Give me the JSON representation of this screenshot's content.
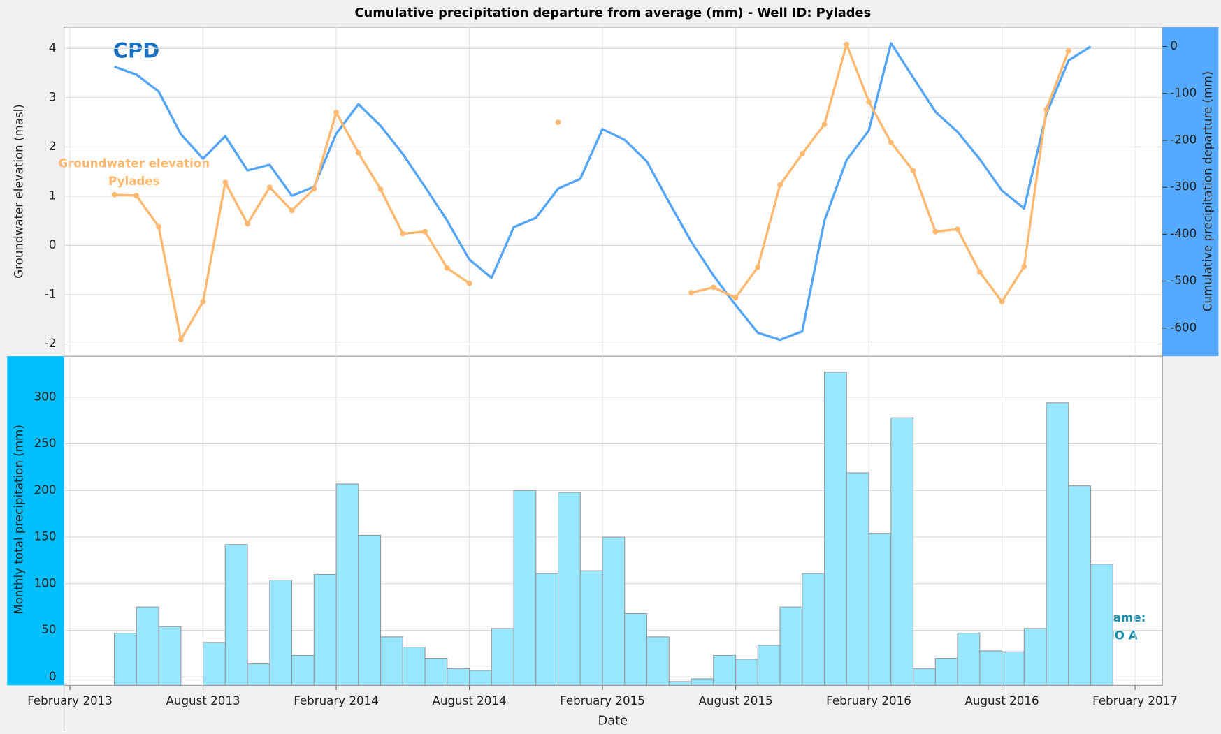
{
  "chart_data": [
    {
      "type": "line",
      "title": "Cumulative precipitation departure from average (mm) - Well ID: Pylades",
      "ylabel": "Groundwater elevation (masl)",
      "y2label": "Cumulative precipitation departure (mm)",
      "x": [
        "2013-04",
        "2013-05",
        "2013-06",
        "2013-07",
        "2013-08",
        "2013-09",
        "2013-10",
        "2013-11",
        "2013-12",
        "2014-01",
        "2014-02",
        "2014-03",
        "2014-04",
        "2014-05",
        "2014-06",
        "2014-07",
        "2014-08",
        "2014-09",
        "2014-10",
        "2014-11",
        "2014-12",
        "2015-01",
        "2015-02",
        "2015-03",
        "2015-04",
        "2015-05",
        "2015-06",
        "2015-07",
        "2015-08",
        "2015-09",
        "2015-10",
        "2015-11",
        "2015-12",
        "2016-01",
        "2016-02",
        "2016-03",
        "2016-04",
        "2016-05",
        "2016-06",
        "2016-07",
        "2016-08",
        "2016-09",
        "2016-10",
        "2016-11",
        "2016-12"
      ],
      "xlim": [
        "2013-01-23",
        "2017-03-08"
      ],
      "ylim": [
        -2.25,
        4.43
      ],
      "yticks": [
        -2,
        -1,
        0,
        1,
        2,
        3,
        4
      ],
      "y2lim": [
        -660,
        41
      ],
      "y2ticks": [
        -600,
        -500,
        -400,
        -300,
        -200,
        -100,
        0
      ],
      "grid": true,
      "series": [
        {
          "name": "CPD",
          "color": "#55a5f5",
          "axis": "y2",
          "values": [
            -43,
            -60,
            -96,
            -187,
            -239,
            -191,
            -264,
            -252,
            -318,
            -299,
            -186,
            -123,
            -169,
            -229,
            -299,
            -371,
            -454,
            -493,
            -385,
            -365,
            -303,
            -282,
            -176,
            -199,
            -245,
            -332,
            -416,
            -488,
            -551,
            -610,
            -625,
            -607,
            -371,
            -242,
            -179,
            7,
            -66,
            -139,
            -182,
            -240,
            -307,
            -345,
            -144,
            -30,
            0
          ]
        },
        {
          "name": "Groundwater elevation",
          "well": "Pylades",
          "color": "#ffb870",
          "values": [
            1.03,
            1.01,
            0.38,
            -1.91,
            -1.14,
            1.28,
            0.44,
            1.18,
            0.71,
            1.15,
            2.7,
            1.88,
            1.14,
            0.24,
            0.28,
            -0.46,
            -0.77,
            null,
            null,
            null,
            2.5,
            null,
            null,
            null,
            null,
            null,
            -0.96,
            -0.85,
            -1.06,
            -0.44,
            1.23,
            1.86,
            2.46,
            4.08,
            2.92,
            2.09,
            1.52,
            0.28,
            0.33,
            -0.54,
            -1.14,
            -0.43,
            2.76,
            3.95,
            null
          ]
        }
      ]
    },
    {
      "type": "bar",
      "ylabel": "Monthly total precipitation (mm)",
      "xlabel": "Date",
      "station_label": "Station name:",
      "station": "NANAIMO A",
      "color": "#99e6ff",
      "x": [
        "2013-04",
        "2013-05",
        "2013-06",
        "2013-07",
        "2013-08",
        "2013-09",
        "2013-10",
        "2013-11",
        "2013-12",
        "2014-01",
        "2014-02",
        "2014-03",
        "2014-04",
        "2014-05",
        "2014-06",
        "2014-07",
        "2014-08",
        "2014-09",
        "2014-10",
        "2014-11",
        "2014-12",
        "2015-01",
        "2015-02",
        "2015-03",
        "2015-04",
        "2015-05",
        "2015-06",
        "2015-07",
        "2015-08",
        "2015-09",
        "2015-10",
        "2015-11",
        "2015-12",
        "2016-01",
        "2016-02",
        "2016-03",
        "2016-04",
        "2016-05",
        "2016-06",
        "2016-07",
        "2016-08",
        "2016-09",
        "2016-10",
        "2016-11",
        "2016-12"
      ],
      "values": [
        47,
        75,
        54,
        null,
        37,
        142,
        14,
        104,
        23,
        110,
        207,
        152,
        43,
        32,
        20,
        9,
        7,
        52,
        200,
        111,
        198,
        114,
        150,
        68,
        43,
        -5,
        -2,
        23,
        19,
        34,
        75,
        111,
        327,
        219,
        154,
        278,
        9,
        20,
        47,
        28,
        27,
        52,
        294,
        205,
        121
      ],
      "xlim": [
        "2013-01-23",
        "2017-03-08"
      ],
      "xticks": [
        {
          "value": "2013-02",
          "label": "February 2013"
        },
        {
          "value": "2013-08",
          "label": "August 2013"
        },
        {
          "value": "2014-02",
          "label": "February 2014"
        },
        {
          "value": "2014-08",
          "label": "August 2014"
        },
        {
          "value": "2015-02",
          "label": "February 2015"
        },
        {
          "value": "2015-08",
          "label": "August 2015"
        },
        {
          "value": "2016-02",
          "label": "February 2016"
        },
        {
          "value": "2016-08",
          "label": "August 2016"
        },
        {
          "value": "2017-02",
          "label": "February 2017"
        }
      ],
      "ylim": [
        -9,
        344
      ],
      "yticks": [
        0,
        50,
        100,
        150,
        200,
        250,
        300
      ],
      "grid": true
    }
  ]
}
